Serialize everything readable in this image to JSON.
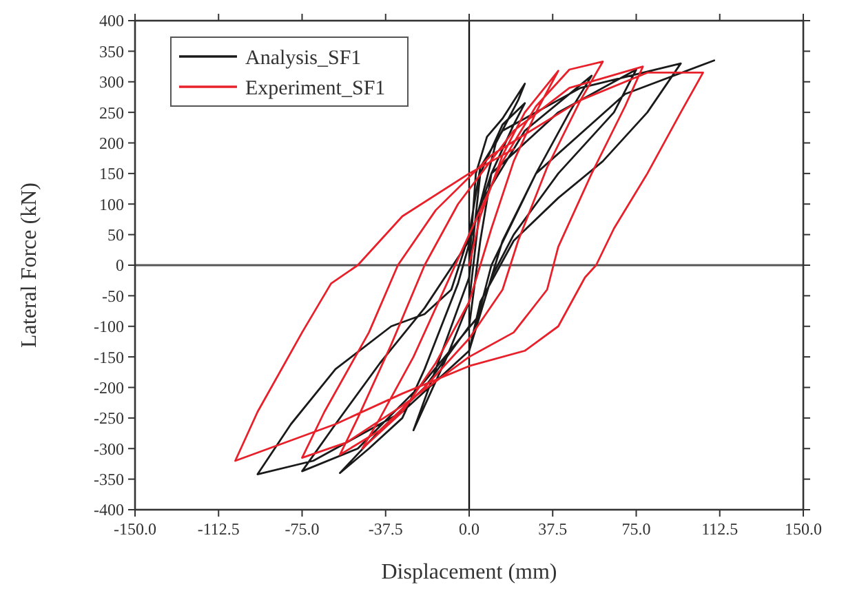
{
  "chart_data": {
    "type": "line",
    "xlabel": "Displacement (mm)",
    "ylabel": "Lateral Force (kN)",
    "xlim": [
      -150,
      150
    ],
    "ylim": [
      -400,
      400
    ],
    "xticks": [
      {
        "value": -150,
        "label": "-150.0"
      },
      {
        "value": -112.5,
        "label": "-112.5"
      },
      {
        "value": -75,
        "label": "-75.0"
      },
      {
        "value": -37.5,
        "label": "-37.5"
      },
      {
        "value": 0,
        "label": "0.0"
      },
      {
        "value": 37.5,
        "label": "37.5"
      },
      {
        "value": 75,
        "label": "75.0"
      },
      {
        "value": 112.5,
        "label": "112.5"
      },
      {
        "value": 150,
        "label": "150.0"
      }
    ],
    "yticks": [
      -400,
      -350,
      -300,
      -250,
      -200,
      -150,
      -100,
      -50,
      0,
      50,
      100,
      150,
      200,
      250,
      300,
      350,
      400
    ],
    "grid": false,
    "legend": "top left",
    "marker": "none",
    "line_style": "solid",
    "ref_lines": [
      {
        "axis": "x",
        "value": 0,
        "color": "#111111"
      },
      {
        "axis": "y",
        "value": 0,
        "color": "#555555"
      }
    ],
    "series": [
      {
        "name": "Analysis_SF1",
        "color": "#1a1a1a",
        "x": [
          0,
          3,
          8,
          15,
          25,
          22,
          12,
          5,
          0,
          -10,
          -25,
          -20,
          -10,
          0,
          5,
          15,
          25,
          20,
          10,
          5,
          0,
          -20,
          -40,
          -58,
          -45,
          -30,
          -20,
          -5,
          5,
          25,
          55,
          45,
          30,
          15,
          5,
          -20,
          -50,
          -75,
          -60,
          -40,
          -20,
          0,
          10,
          40,
          75,
          65,
          40,
          20,
          10,
          0,
          -30,
          -70,
          -95,
          -80,
          -60,
          -35,
          -20,
          -8,
          0,
          5,
          15,
          50,
          95,
          80,
          60,
          40,
          20,
          5,
          0,
          10,
          30,
          70,
          110
        ],
        "values": [
          0,
          150,
          210,
          240,
          297,
          270,
          200,
          100,
          -60,
          -150,
          -270,
          -220,
          -120,
          -20,
          150,
          230,
          265,
          230,
          150,
          40,
          -100,
          -200,
          -270,
          -340,
          -300,
          -250,
          -170,
          -30,
          100,
          220,
          310,
          250,
          150,
          40,
          -80,
          -190,
          -300,
          -337,
          -260,
          -160,
          -70,
          40,
          150,
          250,
          320,
          250,
          150,
          50,
          -20,
          -140,
          -240,
          -320,
          -342,
          -260,
          -170,
          -100,
          -80,
          -40,
          50,
          160,
          220,
          290,
          330,
          250,
          170,
          110,
          40,
          -60,
          -140,
          0,
          150,
          280,
          335
        ]
      },
      {
        "name": "Experiment_SF1",
        "color": "#e8202a",
        "x": [
          0,
          5,
          15,
          25,
          40,
          30,
          20,
          10,
          0,
          -15,
          -30,
          -48,
          -40,
          -25,
          -10,
          0,
          15,
          30,
          45,
          60,
          50,
          35,
          22,
          15,
          0,
          -20,
          -40,
          -58,
          -50,
          -35,
          -20,
          -5,
          20,
          45,
          78,
          70,
          55,
          40,
          35,
          20,
          0,
          -30,
          -55,
          -75,
          -65,
          -45,
          -32,
          -15,
          10,
          50,
          80,
          105,
          95,
          80,
          65,
          57,
          52,
          40,
          25,
          0,
          -30,
          -60,
          -90,
          -105,
          -95,
          -75,
          -62,
          -50,
          -30,
          0,
          20
        ],
        "values": [
          0,
          80,
          180,
          250,
          318,
          250,
          170,
          60,
          -60,
          -160,
          -240,
          -300,
          -250,
          -150,
          -30,
          50,
          170,
          260,
          320,
          333,
          270,
          160,
          40,
          -40,
          -120,
          -200,
          -270,
          -310,
          -250,
          -130,
          0,
          100,
          220,
          290,
          325,
          260,
          150,
          30,
          -40,
          -110,
          -150,
          -230,
          -290,
          -315,
          -240,
          -110,
          0,
          90,
          180,
          270,
          315,
          315,
          250,
          150,
          60,
          0,
          -20,
          -100,
          -140,
          -165,
          -210,
          -260,
          -300,
          -320,
          -240,
          -110,
          -30,
          0,
          80,
          150,
          190
        ]
      }
    ]
  }
}
